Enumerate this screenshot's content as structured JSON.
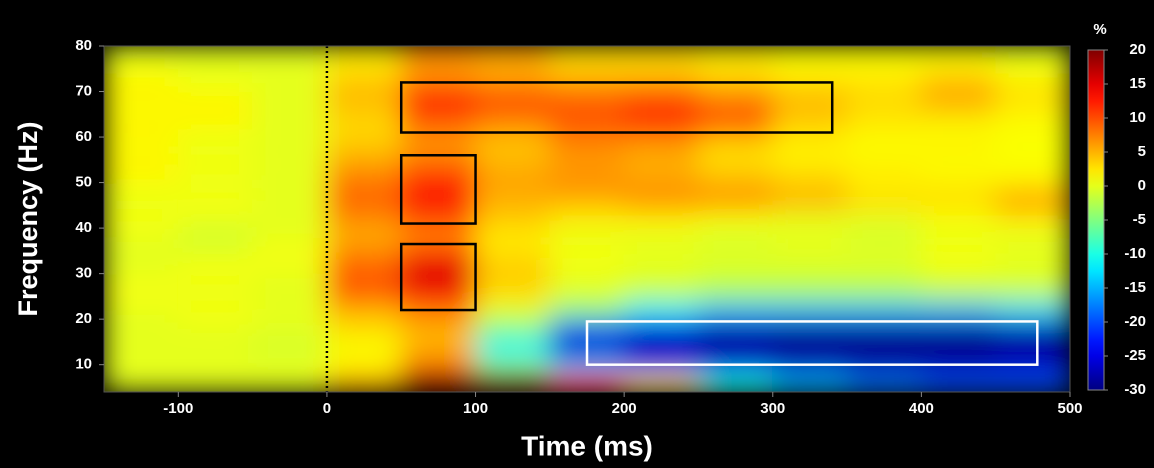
{
  "chart_data": {
    "type": "heatmap",
    "xlabel": "Time (ms)",
    "ylabel": "Frequency (Hz)",
    "x": [
      -125,
      -75,
      -25,
      25,
      75,
      125,
      175,
      225,
      275,
      325,
      375,
      425,
      475
    ],
    "y": [
      6,
      10,
      14,
      18,
      22,
      26,
      30,
      34,
      38,
      42,
      46,
      50,
      54,
      58,
      62,
      66,
      70,
      74,
      78
    ],
    "z": [
      [
        0,
        0,
        0,
        5,
        20,
        20,
        12,
        3,
        -10,
        -15,
        -18,
        -20,
        -20
      ],
      [
        0,
        0,
        0,
        2,
        8,
        -5,
        -15,
        -22,
        -25,
        -27,
        -28,
        -28,
        -27
      ],
      [
        0,
        0,
        -1,
        1,
        5,
        -12,
        -27,
        -29,
        -30,
        -30,
        -30,
        -30,
        -29
      ],
      [
        0,
        0,
        0,
        3,
        5,
        -5,
        -20,
        -25,
        -27,
        -28,
        -28,
        -28,
        -27
      ],
      [
        0,
        1,
        0,
        5,
        8,
        0,
        -5,
        -12,
        -15,
        -15,
        -15,
        -15,
        -13
      ],
      [
        1,
        0,
        0,
        10,
        14,
        3,
        0,
        -2,
        -3,
        -3,
        -3,
        -2,
        -2
      ],
      [
        0,
        1,
        0,
        9,
        16,
        4,
        0,
        0,
        -1,
        -1,
        -1,
        0,
        0
      ],
      [
        0,
        0,
        1,
        8,
        12,
        3,
        1,
        0,
        0,
        0,
        0,
        1,
        0
      ],
      [
        0,
        -1,
        0,
        5,
        7,
        2,
        0,
        0,
        -1,
        0,
        -1,
        0,
        0
      ],
      [
        1,
        0,
        0,
        7,
        10,
        4,
        2,
        2,
        1,
        0,
        0,
        1,
        2
      ],
      [
        0,
        1,
        0,
        9,
        14,
        5,
        5,
        7,
        7,
        5,
        3,
        3,
        7
      ],
      [
        1,
        0,
        0,
        8,
        12,
        6,
        7,
        6,
        5,
        4,
        2,
        2,
        2
      ],
      [
        2,
        1,
        0,
        6,
        9,
        5,
        6,
        5,
        3,
        2,
        2,
        1,
        1
      ],
      [
        1,
        0,
        0,
        4,
        6,
        4,
        7,
        6,
        3,
        2,
        1,
        2,
        1
      ],
      [
        2,
        1,
        0,
        3,
        8,
        6,
        9,
        10,
        8,
        3,
        2,
        1,
        1
      ],
      [
        1,
        2,
        0,
        4,
        12,
        10,
        10,
        12,
        10,
        5,
        3,
        4,
        2
      ],
      [
        2,
        1,
        0,
        5,
        11,
        9,
        8,
        9,
        6,
        4,
        3,
        6,
        3
      ],
      [
        1,
        0,
        0,
        3,
        6,
        5,
        4,
        4,
        3,
        2,
        2,
        3,
        1
      ],
      [
        0,
        0,
        0,
        2,
        7,
        6,
        3,
        3,
        2,
        1,
        1,
        1,
        0
      ]
    ],
    "xlim": [
      -150,
      500
    ],
    "ylim": [
      4,
      80
    ],
    "xticks": [
      -100,
      0,
      100,
      200,
      300,
      400,
      500
    ],
    "yticks": [
      10,
      20,
      30,
      40,
      50,
      60,
      70,
      80
    ],
    "colorbar": {
      "label": "%",
      "clim": [
        -30,
        20
      ],
      "ticks": [
        20,
        15,
        10,
        5,
        0,
        -5,
        -10,
        -15,
        -20,
        -25,
        -30
      ]
    },
    "vline": {
      "x": 0,
      "color": "#000000"
    },
    "boxes": [
      {
        "x": [
          50,
          340
        ],
        "y": [
          61,
          72
        ],
        "color": "#000000"
      },
      {
        "x": [
          50,
          100
        ],
        "y": [
          41,
          56
        ],
        "color": "#000000"
      },
      {
        "x": [
          50,
          100
        ],
        "y": [
          22,
          36.5
        ],
        "color": "#000000"
      },
      {
        "x": [
          175,
          478
        ],
        "y": [
          10,
          19.5
        ],
        "color": "#ffffff"
      }
    ]
  }
}
